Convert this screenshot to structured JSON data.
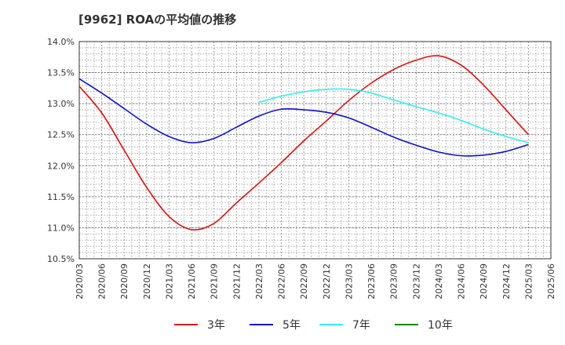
{
  "title": "[9962]  ROAの平均値の推移",
  "chart_data": {
    "type": "line",
    "title": "[9962]  ROAの平均値の推移",
    "xlabel": "",
    "ylabel": "",
    "ylim": [
      10.5,
      14.0
    ],
    "grid": true,
    "legend_placement": "bottom",
    "x_ticks": [
      "2020/03",
      "2020/06",
      "2020/09",
      "2020/12",
      "2021/03",
      "2021/06",
      "2021/09",
      "2021/12",
      "2022/03",
      "2022/06",
      "2022/09",
      "2022/12",
      "2023/03",
      "2023/06",
      "2023/09",
      "2023/12",
      "2024/03",
      "2024/06",
      "2024/09",
      "2024/12",
      "2025/03",
      "2025/06"
    ],
    "y_ticks": [
      "10.5%",
      "11.0%",
      "11.5%",
      "12.0%",
      "12.5%",
      "13.0%",
      "13.5%",
      "14.0%"
    ],
    "y_tick_values": [
      10.5,
      11.0,
      11.5,
      12.0,
      12.5,
      13.0,
      13.5,
      14.0
    ],
    "series": [
      {
        "name": "3年",
        "color": "#dd1111",
        "x": [
          "2020/03",
          "2020/06",
          "2020/09",
          "2020/12",
          "2021/03",
          "2021/06",
          "2021/09",
          "2021/12",
          "2022/03",
          "2022/06",
          "2022/09",
          "2022/12",
          "2023/03",
          "2023/06",
          "2023/09",
          "2023/12",
          "2024/03",
          "2024/06",
          "2024/09",
          "2024/12",
          "2025/03"
        ],
        "values": [
          13.28,
          12.85,
          12.25,
          11.65,
          11.18,
          10.97,
          11.07,
          11.4,
          11.72,
          12.05,
          12.4,
          12.72,
          13.05,
          13.33,
          13.55,
          13.7,
          13.77,
          13.62,
          13.3,
          12.9,
          12.5
        ]
      },
      {
        "name": "5年",
        "color": "#1111cc",
        "x": [
          "2020/03",
          "2020/06",
          "2020/09",
          "2020/12",
          "2021/03",
          "2021/06",
          "2021/09",
          "2021/12",
          "2022/03",
          "2022/06",
          "2022/09",
          "2022/12",
          "2023/03",
          "2023/06",
          "2023/09",
          "2023/12",
          "2024/03",
          "2024/06",
          "2024/09",
          "2024/12",
          "2025/03"
        ],
        "values": [
          13.4,
          13.17,
          12.92,
          12.67,
          12.47,
          12.37,
          12.44,
          12.62,
          12.8,
          12.91,
          12.9,
          12.86,
          12.77,
          12.62,
          12.46,
          12.33,
          12.22,
          12.16,
          12.17,
          12.23,
          12.34
        ]
      },
      {
        "name": "7年",
        "color": "#33eeee",
        "x": [
          "2022/03",
          "2022/06",
          "2022/09",
          "2022/12",
          "2023/03",
          "2023/06",
          "2023/09",
          "2023/12",
          "2024/03",
          "2024/06",
          "2024/09",
          "2024/12",
          "2025/03"
        ],
        "values": [
          13.02,
          13.12,
          13.19,
          13.23,
          13.23,
          13.17,
          13.06,
          12.95,
          12.85,
          12.73,
          12.59,
          12.47,
          12.37
        ]
      },
      {
        "name": "10年",
        "color": "#118811",
        "x": [],
        "values": []
      }
    ]
  }
}
